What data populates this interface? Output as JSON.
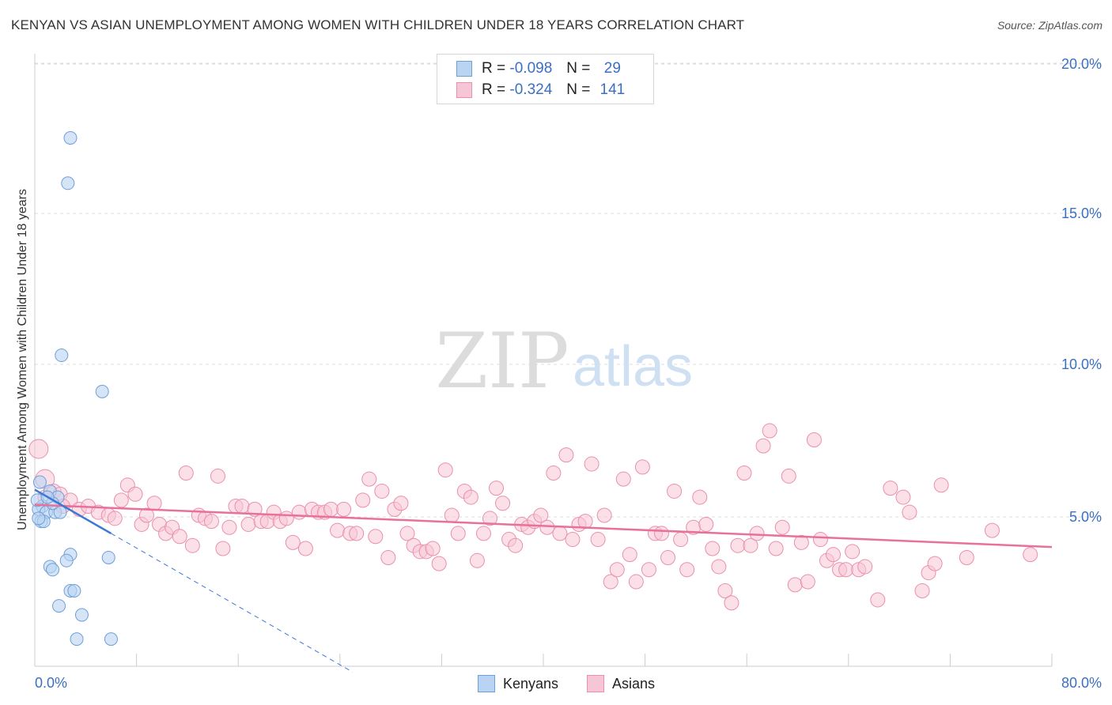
{
  "title": "KENYAN VS ASIAN UNEMPLOYMENT AMONG WOMEN WITH CHILDREN UNDER 18 YEARS CORRELATION CHART",
  "source": "Source: ZipAtlas.com",
  "watermark": {
    "zip": "ZIP",
    "atlas": "atlas"
  },
  "colors": {
    "kenyan_fill": "#b9d3f2",
    "kenyan_stroke": "#6f9fd8",
    "kenyan_line": "#3b78d4",
    "asian_fill": "#f7c6d6",
    "asian_stroke": "#ea8fae",
    "asian_line": "#e8709b",
    "tick_label": "#3b6fc4",
    "grid": "#dcdcdc"
  },
  "legend": {
    "rows": [
      {
        "series": "Kenyans",
        "r_label": "R =",
        "r_value": "-0.098",
        "n_label": "N =",
        "n_value": "29"
      },
      {
        "series": "Asians",
        "r_label": "R =",
        "r_value": "-0.324",
        "n_label": "N =",
        "n_value": "141"
      }
    ]
  },
  "bottom_legend": {
    "kenyans": "Kenyans",
    "asians": "Asians"
  },
  "chart_data": {
    "type": "scatter",
    "title": "KENYAN VS ASIAN UNEMPLOYMENT AMONG WOMEN WITH CHILDREN UNDER 18 YEARS CORRELATION CHART",
    "xlabel": "",
    "ylabel": "Unemployment Among Women with Children Under 18 years",
    "xlim": [
      0,
      80
    ],
    "ylim": [
      0,
      20.5
    ],
    "x_tick_labels": [
      "0.0%",
      "80.0%"
    ],
    "y_ticks": [
      5,
      10,
      15,
      20
    ],
    "y_tick_labels": [
      "5.0%",
      "10.0%",
      "15.0%",
      "20.0%"
    ],
    "grid": true,
    "series": [
      {
        "name": "Kenyans",
        "r": -0.098,
        "n": 29,
        "trend": {
          "x0": 0,
          "y0": 5.85,
          "x1": 6,
          "y1": 4.4,
          "dash_to_x": 25
        },
        "points": [
          [
            2.8,
            17.5
          ],
          [
            2.6,
            16.0
          ],
          [
            2.1,
            10.3
          ],
          [
            5.3,
            9.1
          ],
          [
            0.4,
            6.1
          ],
          [
            1.2,
            5.8
          ],
          [
            1.8,
            5.6
          ],
          [
            0.6,
            5.3
          ],
          [
            0.3,
            5.2
          ],
          [
            0.9,
            5.1
          ],
          [
            1.6,
            5.1
          ],
          [
            2.0,
            5.1
          ],
          [
            0.5,
            4.8
          ],
          [
            0.7,
            4.8
          ],
          [
            1.4,
            5.4
          ],
          [
            0.2,
            5.5
          ],
          [
            2.8,
            3.7
          ],
          [
            2.5,
            3.5
          ],
          [
            5.8,
            3.6
          ],
          [
            1.2,
            3.3
          ],
          [
            1.4,
            3.2
          ],
          [
            2.8,
            2.5
          ],
          [
            3.1,
            2.5
          ],
          [
            1.9,
            2.0
          ],
          [
            3.7,
            1.7
          ],
          [
            3.3,
            0.9
          ],
          [
            6.0,
            0.9
          ],
          [
            1.0,
            5.6
          ],
          [
            0.3,
            4.9
          ]
        ]
      },
      {
        "name": "Asians",
        "r": -0.324,
        "n": 141,
        "trend": {
          "x0": 0,
          "y0": 5.35,
          "x1": 80,
          "y1": 3.95
        },
        "points": [
          [
            0.3,
            7.2
          ],
          [
            0.8,
            6.2
          ],
          [
            1.5,
            5.8
          ],
          [
            2.0,
            5.7
          ],
          [
            2.8,
            5.5
          ],
          [
            3.5,
            5.2
          ],
          [
            4.2,
            5.3
          ],
          [
            5.0,
            5.1
          ],
          [
            5.8,
            5.0
          ],
          [
            6.3,
            4.9
          ],
          [
            6.8,
            5.5
          ],
          [
            7.3,
            6.0
          ],
          [
            7.9,
            5.7
          ],
          [
            8.4,
            4.7
          ],
          [
            8.8,
            5.0
          ],
          [
            9.4,
            5.4
          ],
          [
            9.8,
            4.7
          ],
          [
            10.3,
            4.4
          ],
          [
            10.8,
            4.6
          ],
          [
            11.4,
            4.3
          ],
          [
            11.9,
            6.4
          ],
          [
            12.4,
            4.0
          ],
          [
            12.9,
            5.0
          ],
          [
            13.4,
            4.9
          ],
          [
            13.9,
            4.8
          ],
          [
            14.4,
            6.3
          ],
          [
            14.8,
            3.9
          ],
          [
            15.3,
            4.6
          ],
          [
            15.8,
            5.3
          ],
          [
            16.3,
            5.3
          ],
          [
            16.8,
            4.7
          ],
          [
            17.3,
            5.2
          ],
          [
            17.8,
            4.8
          ],
          [
            18.3,
            4.8
          ],
          [
            18.8,
            5.1
          ],
          [
            19.3,
            4.8
          ],
          [
            19.8,
            4.9
          ],
          [
            20.3,
            4.1
          ],
          [
            20.8,
            5.1
          ],
          [
            21.3,
            3.9
          ],
          [
            21.8,
            5.2
          ],
          [
            22.3,
            5.1
          ],
          [
            22.8,
            5.1
          ],
          [
            23.3,
            5.2
          ],
          [
            23.8,
            4.5
          ],
          [
            24.3,
            5.2
          ],
          [
            24.8,
            4.4
          ],
          [
            25.3,
            4.4
          ],
          [
            25.8,
            5.5
          ],
          [
            26.3,
            6.2
          ],
          [
            26.8,
            4.3
          ],
          [
            27.3,
            5.8
          ],
          [
            27.8,
            3.6
          ],
          [
            28.3,
            5.2
          ],
          [
            28.8,
            5.4
          ],
          [
            29.3,
            4.4
          ],
          [
            29.8,
            4.0
          ],
          [
            30.3,
            3.8
          ],
          [
            30.8,
            3.8
          ],
          [
            31.3,
            3.9
          ],
          [
            31.8,
            3.4
          ],
          [
            32.3,
            6.5
          ],
          [
            32.8,
            5.0
          ],
          [
            33.3,
            4.4
          ],
          [
            33.8,
            5.8
          ],
          [
            34.3,
            5.6
          ],
          [
            34.8,
            3.5
          ],
          [
            35.3,
            4.4
          ],
          [
            35.8,
            4.9
          ],
          [
            36.3,
            5.9
          ],
          [
            36.8,
            5.4
          ],
          [
            37.3,
            4.2
          ],
          [
            37.8,
            4.0
          ],
          [
            38.3,
            4.7
          ],
          [
            38.8,
            4.6
          ],
          [
            39.3,
            4.8
          ],
          [
            39.8,
            5.0
          ],
          [
            40.3,
            4.6
          ],
          [
            40.8,
            6.4
          ],
          [
            41.3,
            4.4
          ],
          [
            41.8,
            7.0
          ],
          [
            42.3,
            4.2
          ],
          [
            42.8,
            4.7
          ],
          [
            43.3,
            4.8
          ],
          [
            43.8,
            6.7
          ],
          [
            44.3,
            4.2
          ],
          [
            44.8,
            5.0
          ],
          [
            45.3,
            2.8
          ],
          [
            45.8,
            3.2
          ],
          [
            46.3,
            6.2
          ],
          [
            46.8,
            3.7
          ],
          [
            47.3,
            2.8
          ],
          [
            47.8,
            6.6
          ],
          [
            48.3,
            3.2
          ],
          [
            48.8,
            4.4
          ],
          [
            49.3,
            4.4
          ],
          [
            49.8,
            3.6
          ],
          [
            50.3,
            5.8
          ],
          [
            50.8,
            4.2
          ],
          [
            51.3,
            3.2
          ],
          [
            51.8,
            4.6
          ],
          [
            52.3,
            5.6
          ],
          [
            52.8,
            4.7
          ],
          [
            53.3,
            3.9
          ],
          [
            53.8,
            3.3
          ],
          [
            54.3,
            2.5
          ],
          [
            54.8,
            2.1
          ],
          [
            55.3,
            4.0
          ],
          [
            55.8,
            6.4
          ],
          [
            56.3,
            4.0
          ],
          [
            56.8,
            4.4
          ],
          [
            57.3,
            7.3
          ],
          [
            57.8,
            7.8
          ],
          [
            58.3,
            3.9
          ],
          [
            58.8,
            4.6
          ],
          [
            59.3,
            6.3
          ],
          [
            59.8,
            2.7
          ],
          [
            60.3,
            4.1
          ],
          [
            60.8,
            2.8
          ],
          [
            61.3,
            7.5
          ],
          [
            61.8,
            4.2
          ],
          [
            62.3,
            3.5
          ],
          [
            62.8,
            3.7
          ],
          [
            63.3,
            3.2
          ],
          [
            63.8,
            3.2
          ],
          [
            64.3,
            3.8
          ],
          [
            64.8,
            3.2
          ],
          [
            65.3,
            3.3
          ],
          [
            66.3,
            2.2
          ],
          [
            67.3,
            5.9
          ],
          [
            68.3,
            5.6
          ],
          [
            68.8,
            5.1
          ],
          [
            69.8,
            2.5
          ],
          [
            70.3,
            3.1
          ],
          [
            70.8,
            3.4
          ],
          [
            71.3,
            6.0
          ],
          [
            73.3,
            3.6
          ],
          [
            75.3,
            4.5
          ],
          [
            78.3,
            3.7
          ],
          [
            0.8,
            5.6
          ],
          [
            2.2,
            5.3
          ]
        ]
      }
    ]
  }
}
